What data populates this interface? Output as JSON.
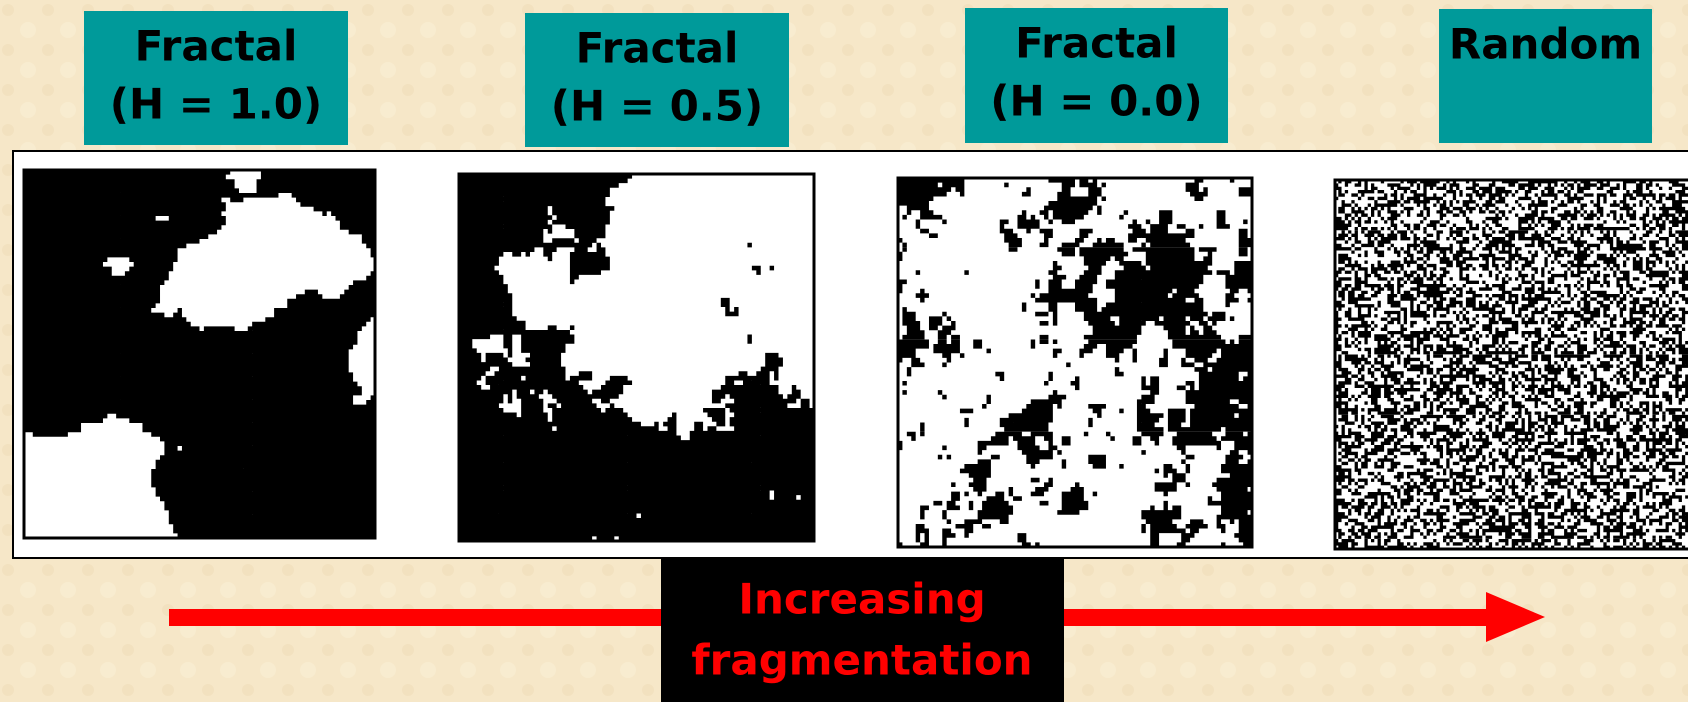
{
  "panels": [
    {
      "lines": [
        "Fractal",
        "(H = 1.0)"
      ]
    },
    {
      "lines": [
        "Fractal",
        "(H = 0.5)"
      ]
    },
    {
      "lines": [
        "Fractal",
        "(H = 0.0)"
      ]
    },
    {
      "lines": [
        "Random"
      ]
    }
  ],
  "arrow": {
    "lines": [
      "Increasing",
      "fragmentation"
    ]
  }
}
